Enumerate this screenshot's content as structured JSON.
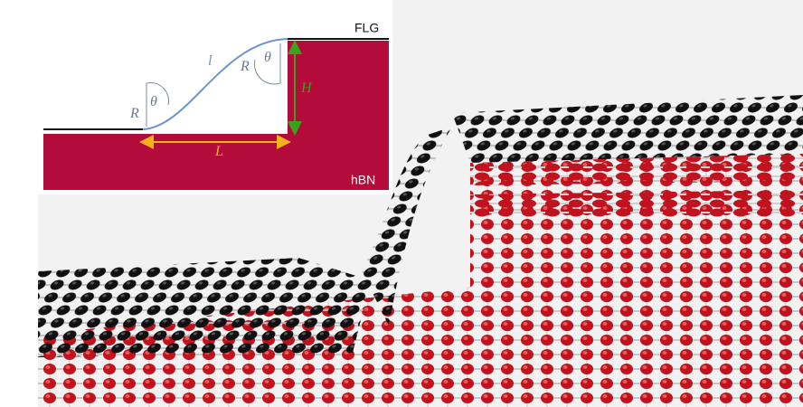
{
  "inset": {
    "labels": {
      "flg": "FLG",
      "hbn": "hBN",
      "r_left": "R",
      "theta_left": "θ",
      "l": "l",
      "r_right": "R",
      "theta_right": "θ",
      "h": "H",
      "length": "L"
    }
  }
}
